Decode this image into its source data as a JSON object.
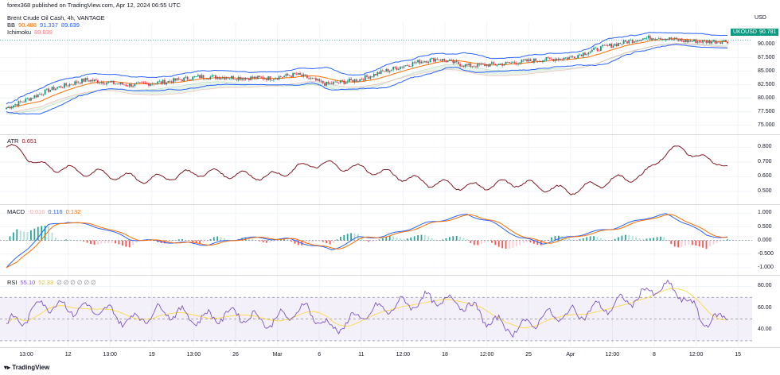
{
  "header": {
    "publisher": "forex368 published on TradingView.com, Apr 12, 2024 06:55 UTC",
    "symbol": "Brent Crude Oil Cash, 4h, VANTAGE",
    "currency": "USD"
  },
  "legend": {
    "bb_label": "BB",
    "bb_v1": "90.488",
    "bb_v2": "91.337",
    "bb_v3": "89.639",
    "ichimoku_label": "Ichimoku",
    "ichimoku_v": "89.839",
    "atr_label": "ATR",
    "atr_v": "0.651",
    "macd_label": "MACD",
    "macd_v1": "-0.016",
    "macd_v2": "0.116",
    "macd_v3": "0.132",
    "rsi_label": "RSI",
    "rsi_v1": "55.10",
    "rsi_v2": "52.33",
    "rsi_extra": "∅ ∅ ∅ ∅ ∅ ∅"
  },
  "price_badge": {
    "symbol": "UKOUSD",
    "value": "90.781"
  },
  "footer": {
    "brand": "TradingView"
  },
  "colors": {
    "up": "#089981",
    "down": "#f23645",
    "bb": "#2962ff",
    "basis": "#ff6d00",
    "atr": "#801922",
    "macd": "#2962ff",
    "signal": "#ff6d00",
    "rsi": "#7e57c2",
    "rsi_ma": "#fdd835"
  },
  "chart_data": [
    {
      "type": "candlestick",
      "pane": "price",
      "y_ticks": [
        "90.000",
        "87.500",
        "85.000",
        "82.500",
        "80.000",
        "77.500",
        "75.000"
      ],
      "ylim": [
        73.9,
        92.3
      ],
      "x_ticks": [
        "13:00",
        "12",
        "13:00",
        "19",
        "13:00",
        "26",
        "Mar",
        "6",
        "11",
        "12:00",
        "18",
        "12:00",
        "25",
        "Apr",
        "12:00",
        "8",
        "12:00",
        "15"
      ],
      "anchors": [
        [
          0,
          78.2
        ],
        [
          10,
          79.5
        ],
        [
          24,
          81.5
        ],
        [
          45,
          83.4
        ],
        [
          70,
          82.4
        ],
        [
          90,
          83.0
        ],
        [
          110,
          84.0
        ],
        [
          130,
          83.8
        ],
        [
          150,
          83.7
        ],
        [
          165,
          84.4
        ],
        [
          182,
          82.6
        ],
        [
          200,
          83.4
        ],
        [
          215,
          85.0
        ],
        [
          235,
          86.8
        ],
        [
          245,
          87.3
        ],
        [
          262,
          86.0
        ],
        [
          280,
          86.3
        ],
        [
          300,
          87.0
        ],
        [
          320,
          87.5
        ],
        [
          340,
          89.5
        ],
        [
          360,
          91.0
        ],
        [
          370,
          91.3
        ],
        [
          385,
          90.6
        ],
        [
          400,
          90.5
        ],
        [
          410,
          90.6
        ]
      ],
      "last": 90.781
    },
    {
      "type": "line",
      "pane": "ATR",
      "y_ticks": [
        "0.800",
        "0.700",
        "0.600",
        "0.500"
      ],
      "ylim": [
        0.44,
        0.84
      ],
      "anchors": [
        [
          0,
          0.8
        ],
        [
          8,
          0.78
        ],
        [
          18,
          0.68
        ],
        [
          40,
          0.64
        ],
        [
          80,
          0.58
        ],
        [
          110,
          0.63
        ],
        [
          150,
          0.6
        ],
        [
          175,
          0.69
        ],
        [
          205,
          0.65
        ],
        [
          240,
          0.56
        ],
        [
          265,
          0.53
        ],
        [
          290,
          0.56
        ],
        [
          320,
          0.5
        ],
        [
          350,
          0.59
        ],
        [
          362,
          0.6
        ],
        [
          372,
          0.74
        ],
        [
          385,
          0.8
        ],
        [
          395,
          0.72
        ],
        [
          405,
          0.71
        ],
        [
          410,
          0.66
        ]
      ]
    },
    {
      "type": "histogram+line",
      "pane": "MACD",
      "y_ticks": [
        "1.000",
        "0.500",
        "0.000",
        "-0.500",
        "-1.000"
      ],
      "ylim": [
        -1.15,
        1.1
      ],
      "macd_anchors": [
        [
          0,
          -1.0
        ],
        [
          12,
          -0.3
        ],
        [
          24,
          0.55
        ],
        [
          35,
          0.7
        ],
        [
          55,
          0.45
        ],
        [
          70,
          0.05
        ],
        [
          90,
          -0.05
        ],
        [
          115,
          -0.15
        ],
        [
          135,
          0.1
        ],
        [
          160,
          0.05
        ],
        [
          185,
          -0.35
        ],
        [
          200,
          0.1
        ],
        [
          215,
          0.15
        ],
        [
          240,
          0.65
        ],
        [
          262,
          0.95
        ],
        [
          275,
          0.7
        ],
        [
          292,
          0.1
        ],
        [
          305,
          -0.1
        ],
        [
          325,
          0.2
        ],
        [
          345,
          0.45
        ],
        [
          365,
          0.85
        ],
        [
          375,
          0.95
        ],
        [
          388,
          0.6
        ],
        [
          398,
          0.18
        ],
        [
          410,
          0.12
        ]
      ],
      "signal_lag": 6
    },
    {
      "type": "line",
      "pane": "RSI",
      "y_ticks": [
        "80.00",
        "60.00",
        "40.00"
      ],
      "ylim": [
        27,
        84
      ],
      "bands": [
        30,
        50,
        70
      ],
      "anchors": [
        [
          0,
          45
        ],
        [
          10,
          50
        ],
        [
          20,
          65
        ],
        [
          35,
          60
        ],
        [
          55,
          58
        ],
        [
          70,
          48
        ],
        [
          90,
          58
        ],
        [
          110,
          50
        ],
        [
          130,
          55
        ],
        [
          150,
          47
        ],
        [
          170,
          60
        ],
        [
          185,
          40
        ],
        [
          200,
          52
        ],
        [
          215,
          60
        ],
        [
          240,
          68
        ],
        [
          260,
          65
        ],
        [
          275,
          48
        ],
        [
          290,
          40
        ],
        [
          305,
          52
        ],
        [
          325,
          55
        ],
        [
          350,
          65
        ],
        [
          365,
          74
        ],
        [
          372,
          80
        ],
        [
          385,
          72
        ],
        [
          395,
          50
        ],
        [
          405,
          48
        ],
        [
          410,
          55
        ]
      ]
    }
  ]
}
